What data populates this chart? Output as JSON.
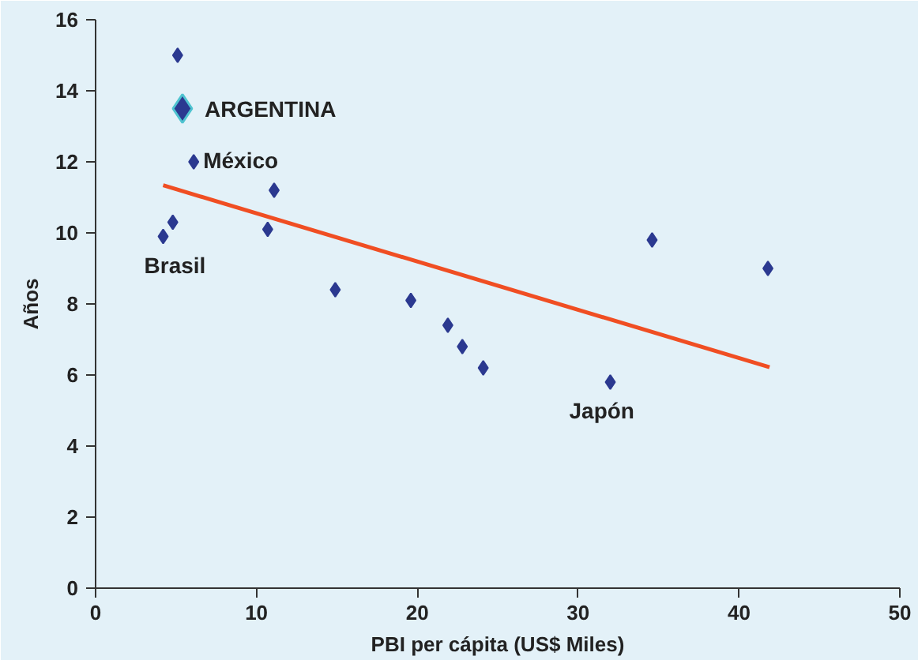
{
  "chart_data": {
    "type": "scatter",
    "xlabel": "PBI per cápita (US$ Miles)",
    "ylabel": "Años",
    "xlim": [
      0,
      50
    ],
    "ylim": [
      0,
      16
    ],
    "xticks": [
      0,
      10,
      20,
      30,
      40,
      50
    ],
    "yticks": [
      0,
      2,
      4,
      6,
      8,
      10,
      12,
      14,
      16
    ],
    "grid": false,
    "series": [
      {
        "color": "#2b3990",
        "marker": "diamond",
        "x": [
          5.1,
          6.1,
          11.1,
          4.8,
          4.2,
          10.7,
          14.9,
          19.6,
          21.9,
          22.8,
          24.1,
          32.0,
          34.6,
          41.8
        ],
        "values": [
          15.0,
          12.0,
          11.2,
          10.3,
          9.9,
          10.1,
          8.4,
          8.1,
          7.4,
          6.8,
          6.2,
          5.8,
          9.8,
          9.0
        ]
      },
      {
        "color": "#2b3990",
        "marker": "diamond",
        "x": [
          5.4
        ],
        "values": [
          13.5
        ]
      },
      {
        "type": "line",
        "color": "#f04e23",
        "x": [
          4.2,
          41.9
        ],
        "values": [
          11.34,
          6.22
        ]
      }
    ],
    "annotations": [
      {
        "text": "ARGENTINA",
        "x": 5.4,
        "y": 13.5
      },
      {
        "text": "México",
        "x": 6.1,
        "y": 12.0
      },
      {
        "text": "Brasil",
        "x": 4.2,
        "y": 9.9
      },
      {
        "text": "Japón",
        "x": 32.0,
        "y": 5.8
      }
    ]
  }
}
